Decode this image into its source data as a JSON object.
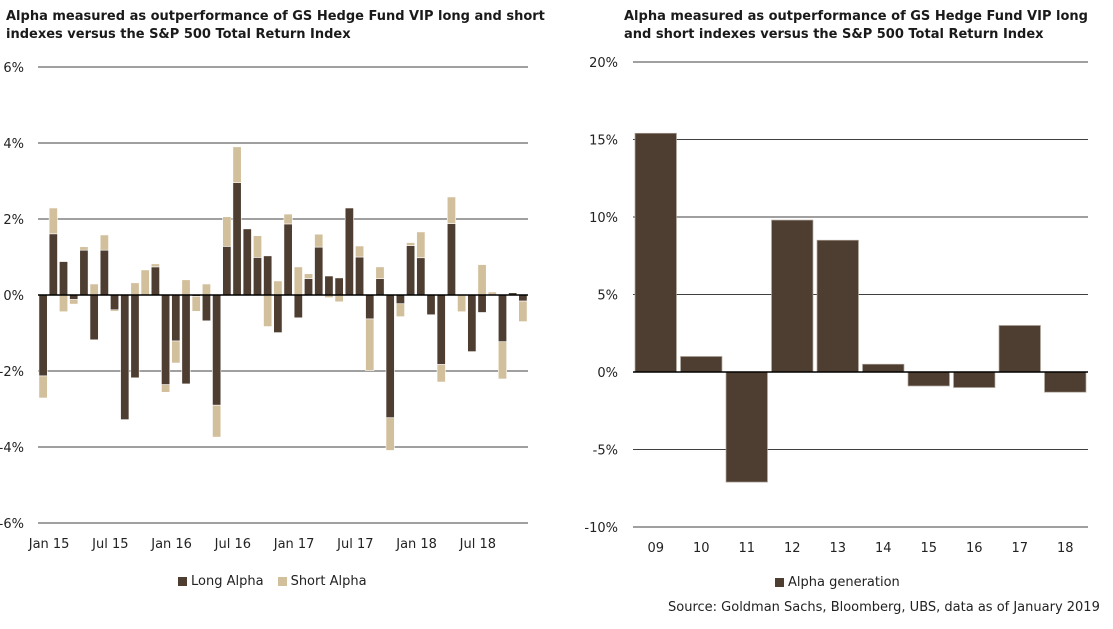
{
  "colors": {
    "long": "#4e3e32",
    "short": "#d2bf9c",
    "grid": "#404040",
    "axis": "#000000"
  },
  "footer": {
    "source": "Source: Goldman Sachs, Bloomberg, UBS, data as of January 2019"
  },
  "chart_data": [
    {
      "type": "bar",
      "stacked": true,
      "title": "Alpha measured as outperformance of GS Hedge Fund VIP long and short indexes versus the S&P 500 Total Return Index",
      "xlabel": "",
      "ylabel": "",
      "ylim": [
        -6,
        6
      ],
      "yticks": [
        6,
        4,
        2,
        0,
        -2,
        -4,
        -6
      ],
      "ytick_labels": [
        "6%",
        "4%",
        "2%",
        "0%",
        "-2%",
        "-4%",
        "-6%"
      ],
      "grid": true,
      "legend": "bottom",
      "x_tick_labels": [
        "Jan 15",
        "Jul 15",
        "Jan 16",
        "Jul 16",
        "Jan 17",
        "Jul 17",
        "Jan 18",
        "Jul 18"
      ],
      "x_tick_indices": [
        0,
        6,
        12,
        18,
        24,
        30,
        36,
        42
      ],
      "categories": [
        "Jan 15",
        "Feb 15",
        "Mar 15",
        "Apr 15",
        "May 15",
        "Jun 15",
        "Jul 15",
        "Aug 15",
        "Sep 15",
        "Oct 15",
        "Nov 15",
        "Dec 15",
        "Jan 16",
        "Feb 16",
        "Mar 16",
        "Apr 16",
        "May 16",
        "Jun 16",
        "Jul 16",
        "Aug 16",
        "Sep 16",
        "Oct 16",
        "Nov 16",
        "Dec 16",
        "Jan 17",
        "Feb 17",
        "Mar 17",
        "Apr 17",
        "May 17",
        "Jun 17",
        "Jul 17",
        "Aug 17",
        "Sep 17",
        "Oct 17",
        "Nov 17",
        "Dec 17",
        "Jan 18",
        "Feb 18",
        "Mar 18",
        "Apr 18",
        "May 18",
        "Jun 18",
        "Jul 18",
        "Aug 18",
        "Sep 18",
        "Oct 18",
        "Nov 18",
        "Dec 18"
      ],
      "series": [
        {
          "name": "Long Alpha",
          "values": [
            -2.13,
            1.61,
            0.88,
            -0.12,
            1.18,
            -1.18,
            1.18,
            -0.39,
            -3.28,
            -2.18,
            0.0,
            0.74,
            -2.36,
            -1.21,
            -2.34,
            -0.04,
            -0.68,
            -2.9,
            1.28,
            2.96,
            1.74,
            0.99,
            1.03,
            -0.99,
            1.87,
            -0.6,
            0.43,
            1.26,
            0.5,
            0.45,
            2.29,
            1.0,
            -0.63,
            0.43,
            -3.23,
            -0.23,
            1.3,
            0.98,
            -0.52,
            -1.83,
            1.88,
            0.0,
            -1.49,
            -0.46,
            0.0,
            -1.23,
            0.06,
            -0.16
          ]
        },
        {
          "name": "Short Alpha",
          "values": [
            -0.58,
            0.68,
            -0.44,
            -0.12,
            0.09,
            0.29,
            0.4,
            -0.04,
            0.0,
            0.32,
            0.66,
            0.08,
            -0.2,
            -0.58,
            0.4,
            -0.39,
            0.29,
            -0.84,
            0.78,
            0.94,
            0.0,
            0.57,
            -0.83,
            0.37,
            0.26,
            0.74,
            0.13,
            0.34,
            -0.07,
            -0.18,
            0.0,
            0.29,
            -1.36,
            0.31,
            -0.86,
            -0.34,
            0.08,
            0.68,
            0.0,
            -0.46,
            0.7,
            -0.44,
            0.0,
            0.8,
            0.08,
            -0.98,
            0.0,
            -0.54
          ]
        }
      ]
    },
    {
      "type": "bar",
      "title": "Alpha measured as outperformance of GS Hedge Fund VIP long and short indexes versus the S&P 500 Total Return Index",
      "xlabel": "",
      "ylabel": "",
      "ylim": [
        -10,
        20
      ],
      "yticks": [
        20,
        15,
        10,
        5,
        0,
        -5,
        -10
      ],
      "ytick_labels": [
        "20%",
        "15%",
        "10%",
        "5%",
        "0%",
        "-5%",
        "-10%"
      ],
      "grid": true,
      "legend": "bottom",
      "categories": [
        "09",
        "10",
        "11",
        "12",
        "13",
        "14",
        "15",
        "16",
        "17",
        "18"
      ],
      "series": [
        {
          "name": "Alpha generation",
          "values": [
            15.4,
            1.0,
            -7.1,
            9.8,
            8.5,
            0.5,
            -0.9,
            -1.0,
            3.0,
            -1.3
          ]
        }
      ]
    }
  ]
}
